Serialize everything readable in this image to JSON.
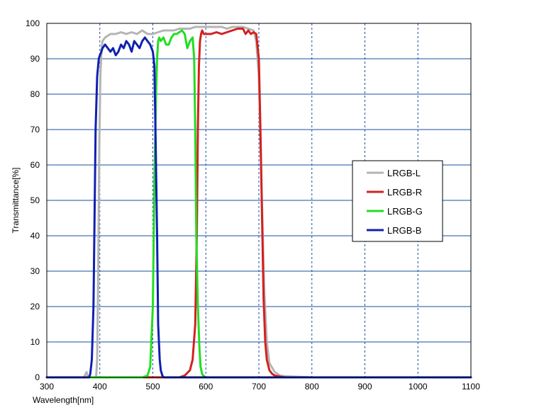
{
  "chart_data": {
    "type": "line",
    "title": "",
    "xlabel": "Wavelength[nm]",
    "ylabel": "Transmittance[%]",
    "xlim": [
      300,
      1100
    ],
    "ylim": [
      0,
      100
    ],
    "x_ticks": [
      "300",
      "400",
      "500",
      "600",
      "700",
      "800",
      "900",
      "1000",
      "1100"
    ],
    "y_ticks": [
      "0",
      "10",
      "20",
      "30",
      "40",
      "50",
      "60",
      "70",
      "80",
      "90",
      "100"
    ],
    "grid": {
      "horizontal": "solid",
      "vertical": "dashed"
    },
    "legend_position": "center-right",
    "series": [
      {
        "name": "LRGB-L",
        "color": "#b4b4b4",
        "x": [
          300,
          370,
          375,
          378,
          380,
          385,
          390,
          393,
          395,
          397,
          399,
          401,
          403,
          405,
          410,
          420,
          430,
          440,
          450,
          460,
          470,
          480,
          490,
          500,
          510,
          520,
          530,
          540,
          550,
          560,
          570,
          580,
          590,
          600,
          610,
          620,
          630,
          640,
          650,
          660,
          670,
          680,
          690,
          695,
          700,
          705,
          710,
          715,
          720,
          730,
          740,
          750,
          800,
          900,
          1000,
          1100
        ],
        "y": [
          0,
          0,
          1.5,
          0,
          0,
          0,
          0,
          0,
          5,
          30,
          65,
          85,
          92,
          95,
          96,
          97,
          97,
          97.5,
          97,
          97.5,
          97,
          98,
          97,
          97,
          97.5,
          98,
          98,
          98,
          98.5,
          98.5,
          98.5,
          99,
          99,
          99,
          99,
          99,
          99,
          98.5,
          99,
          99,
          99,
          98.5,
          98,
          95,
          85,
          55,
          25,
          10,
          4,
          1.5,
          0.5,
          0.3,
          0,
          0,
          0,
          0
        ]
      },
      {
        "name": "LRGB-R",
        "color": "#d42020",
        "x": [
          300,
          550,
          560,
          570,
          575,
          580,
          583,
          585,
          587,
          589,
          591,
          593,
          596,
          600,
          610,
          620,
          630,
          640,
          650,
          660,
          670,
          675,
          680,
          685,
          690,
          695,
          700,
          703,
          706,
          709,
          712,
          715,
          720,
          725,
          730,
          740,
          750,
          800,
          1100
        ],
        "y": [
          0,
          0,
          0.5,
          2,
          5,
          15,
          40,
          70,
          88,
          95,
          97,
          98,
          97,
          97,
          97,
          97.5,
          97,
          97.5,
          98,
          98.5,
          98.5,
          97,
          98,
          97,
          97.5,
          97,
          90,
          70,
          45,
          22,
          10,
          5,
          2,
          1,
          0.5,
          0.2,
          0,
          0,
          0
        ]
      },
      {
        "name": "LRGB-G",
        "color": "#22dd22",
        "x": [
          300,
          480,
          490,
          495,
          500,
          503,
          506,
          508,
          510,
          512,
          515,
          520,
          525,
          530,
          535,
          540,
          545,
          550,
          555,
          560,
          565,
          570,
          575,
          578,
          580,
          582,
          585,
          588,
          590,
          593,
          595,
          600,
          620,
          1100
        ],
        "y": [
          0,
          0,
          0.5,
          3,
          20,
          55,
          80,
          90,
          95,
          96,
          95,
          96,
          94,
          94,
          96,
          97,
          97,
          97.5,
          98,
          97,
          93,
          95,
          96,
          90,
          70,
          40,
          20,
          8,
          3,
          1,
          0.5,
          0,
          0,
          0
        ]
      },
      {
        "name": "LRGB-B",
        "color": "#1020b0",
        "x": [
          300,
          380,
          382,
          385,
          388,
          390,
          392,
          395,
          398,
          400,
          403,
          405,
          410,
          415,
          420,
          425,
          430,
          435,
          440,
          445,
          450,
          455,
          460,
          465,
          470,
          475,
          480,
          485,
          490,
          495,
          500,
          503,
          505,
          508,
          510,
          513,
          515,
          518,
          520,
          525,
          530,
          540,
          1100
        ],
        "y": [
          0,
          0,
          1,
          5,
          20,
          45,
          70,
          85,
          90,
          91,
          92,
          93,
          94,
          93,
          92,
          93,
          91,
          92,
          94,
          93,
          95,
          94,
          92,
          95,
          94,
          93,
          95,
          96,
          95,
          94,
          92,
          88,
          70,
          40,
          15,
          5,
          2,
          0.5,
          0,
          0,
          0,
          0,
          0
        ]
      }
    ]
  }
}
